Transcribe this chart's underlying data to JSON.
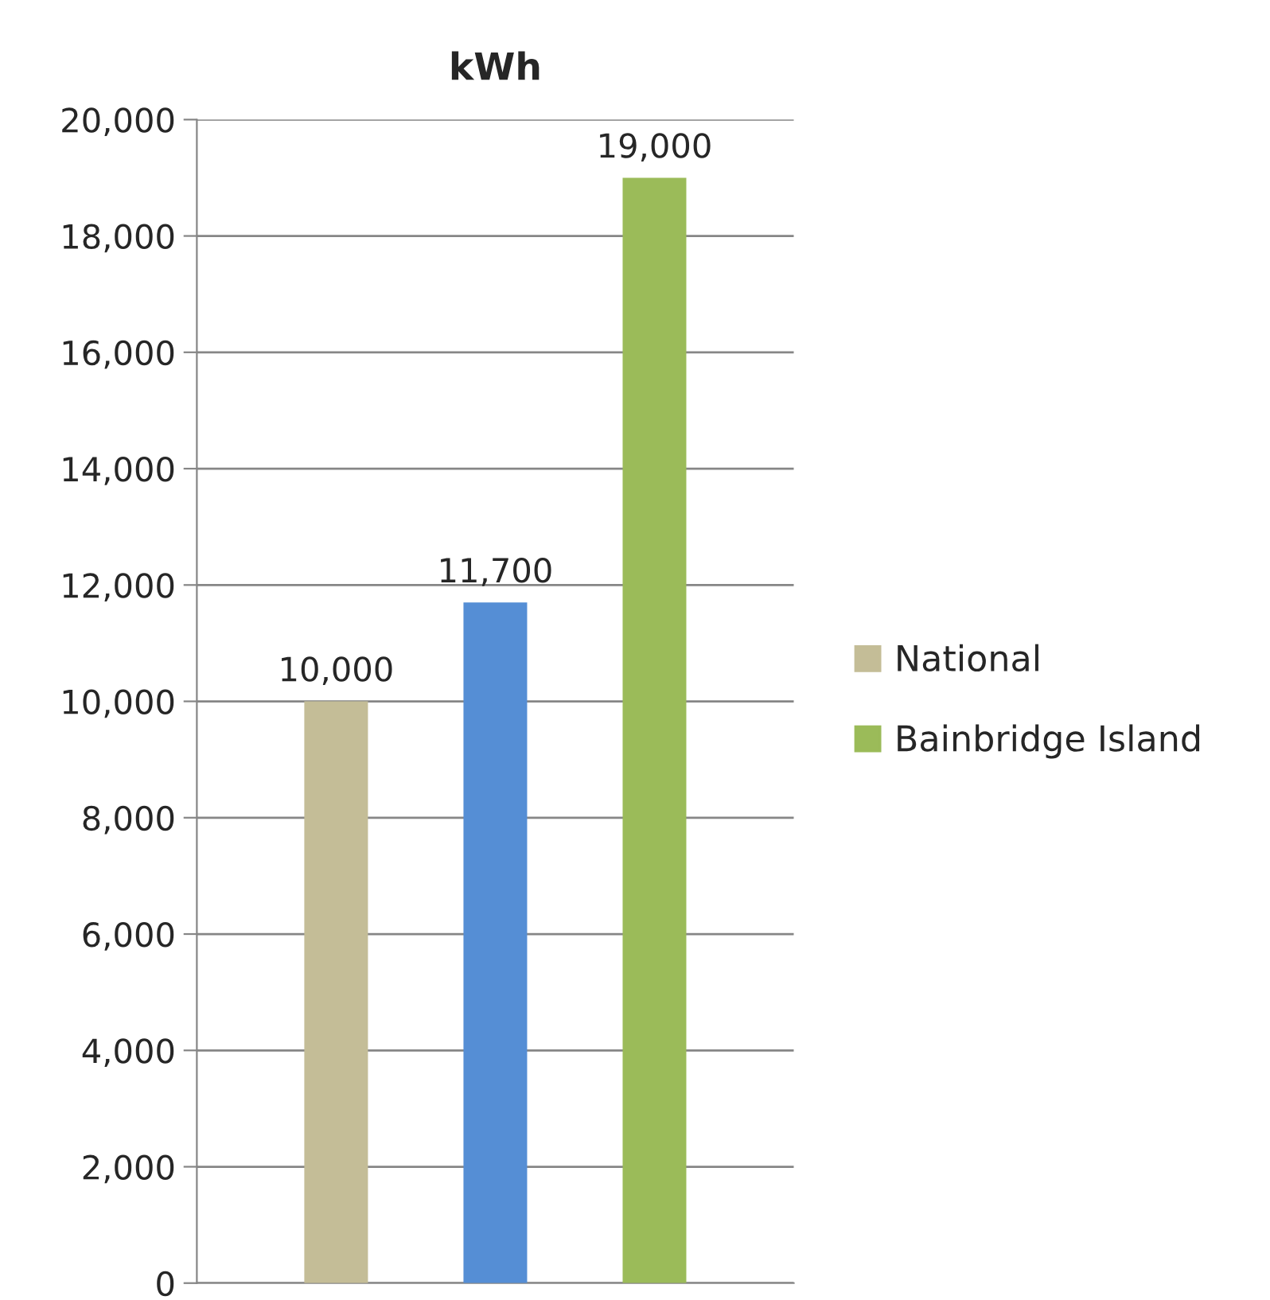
{
  "chart_data": {
    "type": "bar",
    "title": "kWh",
    "categories": [
      null
    ],
    "series": [
      {
        "name": "National",
        "color": "#c4bd97",
        "values": [
          10000
        ],
        "value_labels": [
          "10,000"
        ]
      },
      {
        "color": "#558ed5",
        "values": [
          11700
        ],
        "value_labels": [
          "11,700"
        ]
      },
      {
        "name": "Bainbridge Island",
        "color": "#9bbb59",
        "values": [
          19000
        ],
        "value_labels": [
          "19,000"
        ]
      }
    ],
    "ylim": [
      0,
      20000
    ],
    "yticks": [
      {
        "value": 0,
        "label": "0"
      },
      {
        "value": 2000,
        "label": "2,000"
      },
      {
        "value": 4000,
        "label": "4,000"
      },
      {
        "value": 6000,
        "label": "6,000"
      },
      {
        "value": 8000,
        "label": "8,000"
      },
      {
        "value": 10000,
        "label": "10,000"
      },
      {
        "value": 12000,
        "label": "12,000"
      },
      {
        "value": 14000,
        "label": "14,000"
      },
      {
        "value": 16000,
        "label": "16,000"
      },
      {
        "value": 18000,
        "label": "18,000"
      },
      {
        "value": 20000,
        "label": "20,000"
      }
    ],
    "grid": "y",
    "legend": "right"
  }
}
